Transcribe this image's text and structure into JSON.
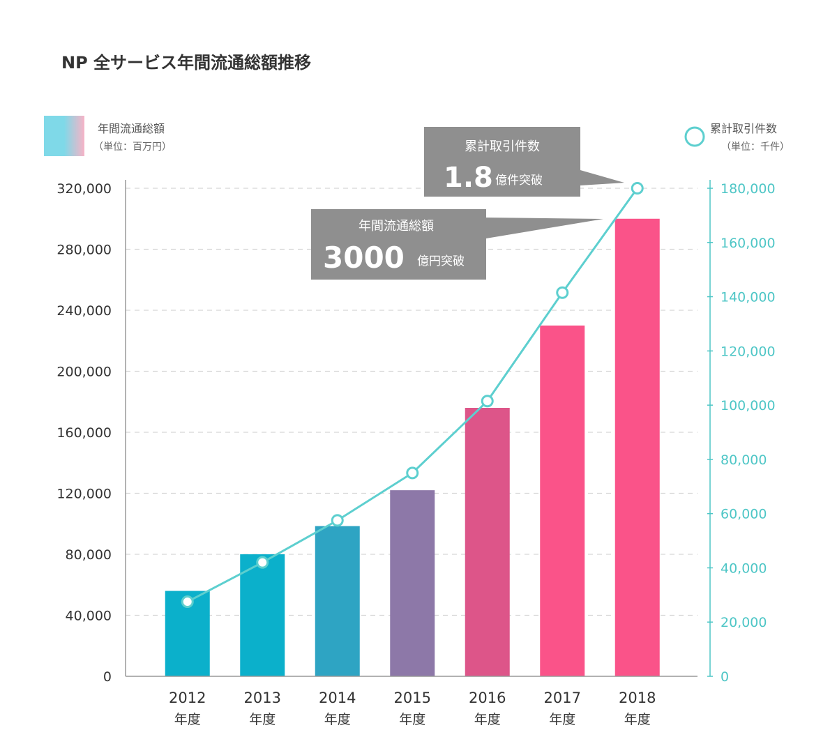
{
  "chart_data": {
    "type": "bar+line",
    "title": "NP 全サービス年間流通総額推移",
    "categories": [
      {
        "year": "2012",
        "suffix": "年度"
      },
      {
        "year": "2013",
        "suffix": "年度"
      },
      {
        "year": "2014",
        "suffix": "年度"
      },
      {
        "year": "2015",
        "suffix": "年度"
      },
      {
        "year": "2016",
        "suffix": "年度"
      },
      {
        "year": "2017",
        "suffix": "年度"
      },
      {
        "year": "2018",
        "suffix": "年度"
      }
    ],
    "bar_series": {
      "name": "年間流通総額",
      "unit": "（単位：百万円）",
      "axis": "left",
      "values": [
        56000,
        80000,
        98500,
        122000,
        176000,
        230000,
        300000
      ]
    },
    "line_series": {
      "name": "累計取引件数",
      "unit": "（単位：千件）",
      "axis": "right",
      "values": [
        27500,
        42000,
        57500,
        75000,
        101500,
        141500,
        180000
      ]
    },
    "left_axis": {
      "ylim": [
        0,
        320000
      ],
      "ticks": [
        "0",
        "40,000",
        "80,000",
        "120,000",
        "160,000",
        "200,000",
        "240,000",
        "280,000",
        "320,000"
      ]
    },
    "right_axis": {
      "ylim": [
        0,
        180000
      ],
      "ticks": [
        "0",
        "20,000",
        "40,000",
        "60,000",
        "80,000",
        "100,000",
        "120,000",
        "140,000",
        "160,000",
        "180,000"
      ]
    },
    "grid": "dashed-horizontal",
    "legend_placement": "top-left and top-right",
    "annotations": [
      {
        "id": "count",
        "label": "累計取引件数",
        "big": "1.8",
        "small": "億件突破",
        "points_to": "line-2018"
      },
      {
        "id": "volume",
        "label": "年間流通総額",
        "big": "3000",
        "small": "億円突破",
        "points_to": "bar-2018"
      }
    ]
  },
  "colors": {
    "bars": [
      "#0bb0cb",
      "#0bb0cb",
      "#2ea4c3",
      "#8d78a8",
      "#dd5589",
      "#fa5389",
      "#fa5389"
    ],
    "line": "#5dcfcf",
    "right_axis": "#4ec6c6",
    "callout": "#8f8f8f",
    "grid": "#d6d6d6",
    "legend_cyan": "#7fd9e8",
    "legend_pink": "#f7b3c6"
  }
}
